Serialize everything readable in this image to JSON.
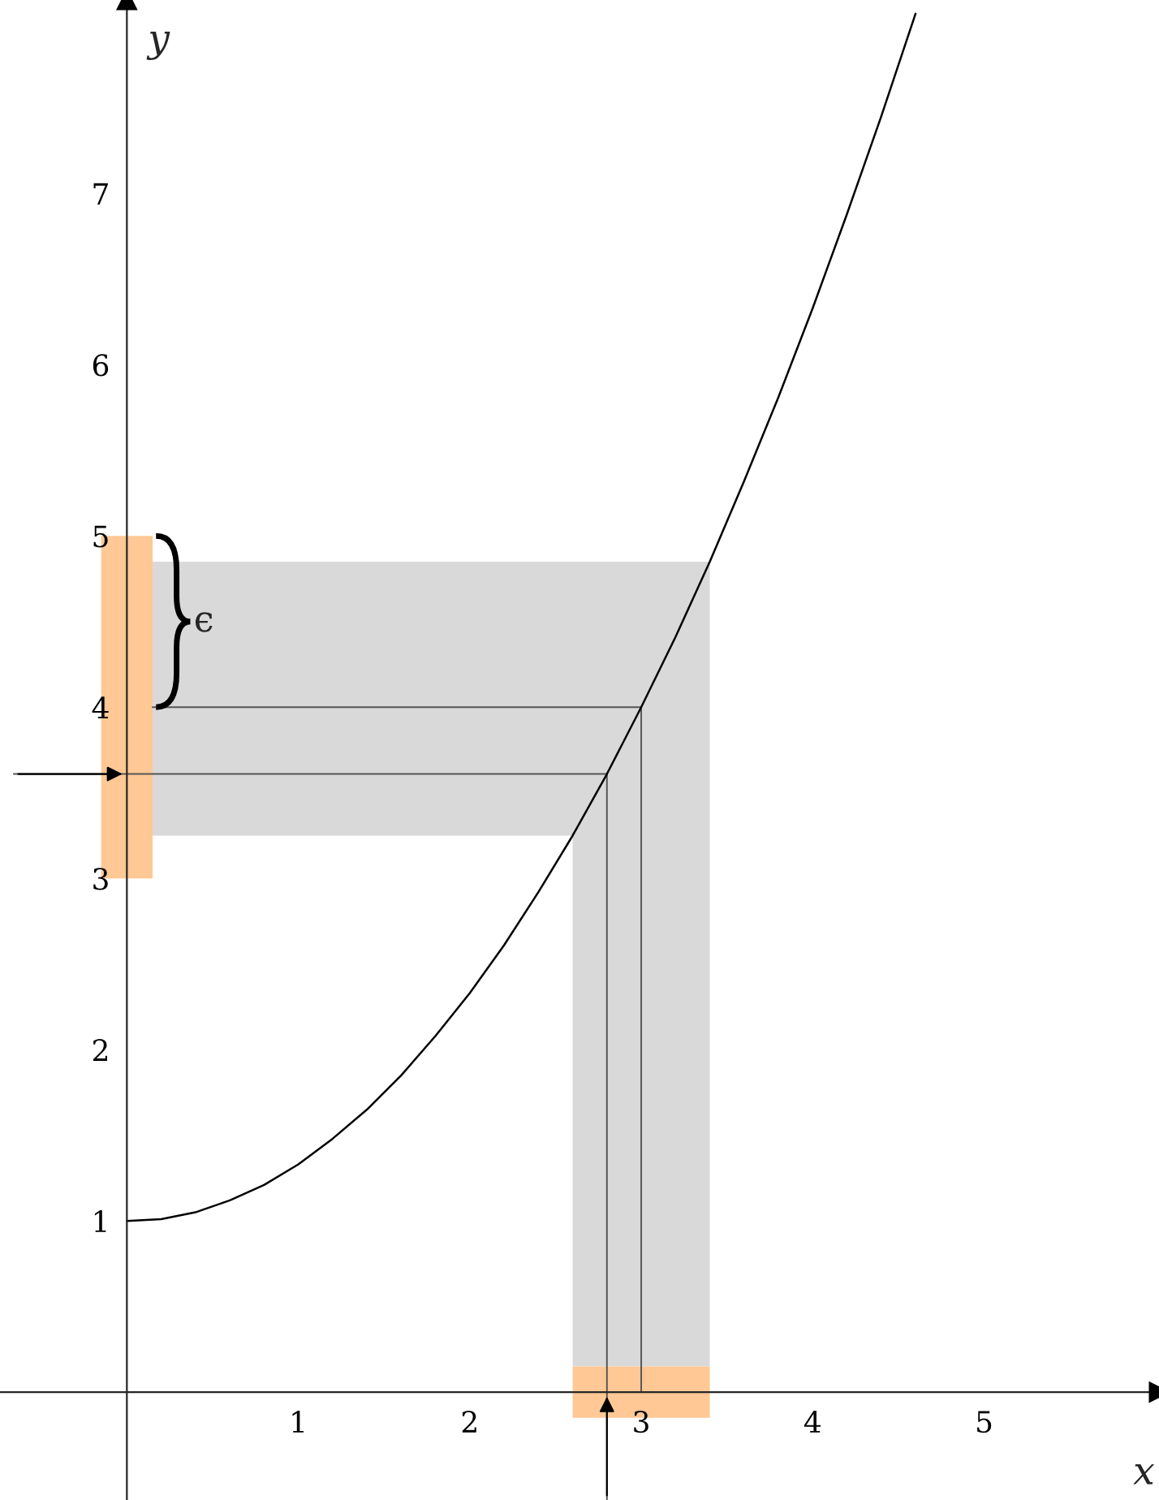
{
  "chart_data": {
    "type": "line",
    "xlabel": "x",
    "ylabel": "y",
    "xlim": [
      -0.74,
      6.02
    ],
    "ylim": [
      -0.63,
      8.13
    ],
    "xticks": [
      1,
      2,
      3,
      4,
      5
    ],
    "yticks": [
      1,
      2,
      3,
      4,
      5,
      6,
      7
    ],
    "grid": false,
    "legend": false,
    "series": [
      {
        "type": "line",
        "color": "#d9d9d9",
        "x": [
          0.15,
          2.6,
          2.6,
          3.4
        ],
        "values": [
          null,
          null,
          null,
          null
        ],
        "lower": [
          3.25,
          3.25,
          0.15,
          0.15
        ],
        "upper": [
          4.85,
          4.85,
          4.85,
          4.85
        ]
      },
      {
        "type": "line",
        "color": "#ffc894",
        "x": [
          -0.15,
          0.15
        ],
        "values": [
          null,
          null
        ],
        "lower": [
          3,
          3
        ],
        "upper": [
          5,
          5
        ]
      },
      {
        "type": "line",
        "color": "#ffc894",
        "x": [
          2.6,
          3.4
        ],
        "values": [
          null,
          null
        ],
        "lower": [
          -0.15,
          -0.15
        ],
        "upper": [
          0.15,
          0.15
        ]
      },
      {
        "color": "#555555",
        "x": [
          0.15,
          3,
          3
        ],
        "values": [
          4,
          4,
          0
        ]
      },
      {
        "color": "#555555",
        "x": [
          -0.66,
          2.8,
          2.8
        ],
        "values": [
          3.61,
          3.61,
          -0.63
        ]
      },
      {
        "color": "#000000",
        "x": [
          0,
          0.2,
          0.4,
          0.6,
          0.8,
          1,
          1.2,
          1.4,
          1.6,
          1.8,
          2,
          2.2,
          2.4,
          2.6,
          2.8,
          3,
          3.2,
          3.4,
          3.6,
          3.8,
          4,
          4.2,
          4.4,
          4.6
        ],
        "values": [
          1,
          1.01,
          1.05,
          1.12,
          1.21,
          1.33,
          1.48,
          1.65,
          1.85,
          2.08,
          2.33,
          2.61,
          2.92,
          3.25,
          3.61,
          4,
          4.41,
          4.85,
          5.32,
          5.81,
          6.33,
          6.88,
          7.45,
          8.05
        ]
      }
    ],
    "annotations": [
      {
        "text": "ϵ",
        "x": 0.15,
        "y": 4.5
      }
    ]
  }
}
